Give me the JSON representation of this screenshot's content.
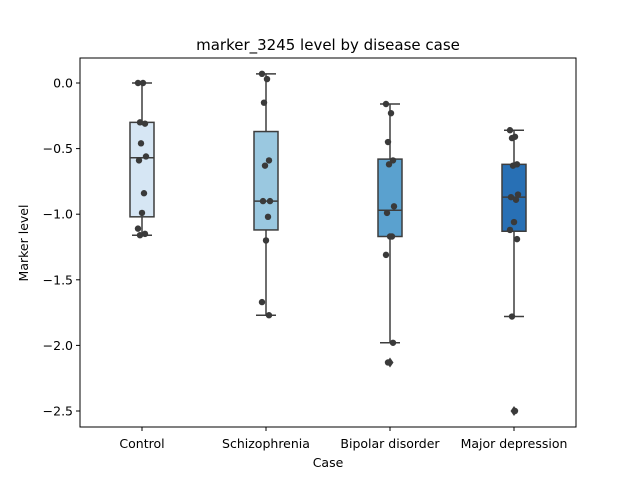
{
  "chart_data": {
    "type": "box",
    "title": "marker_3245 level by disease case",
    "xlabel": "Case",
    "ylabel": "Marker level",
    "ylim": [
      -2.63,
      0.18
    ],
    "yticks": [
      0.0,
      -0.5,
      -1.0,
      -1.5,
      -2.0,
      -2.5
    ],
    "ytick_labels": [
      "0.0",
      "−0.5",
      "−1.0",
      "−1.5",
      "−2.0",
      "−2.5"
    ],
    "grid": false,
    "categories": [
      "Control",
      "Schizophrenia",
      "Bipolar disorder",
      "Major depression"
    ],
    "colors": [
      "#d6e6f4",
      "#9ac8e0",
      "#5aa1cf",
      "#2870b5"
    ],
    "boxes": [
      {
        "whislo": -1.16,
        "q1": -1.02,
        "med": -0.57,
        "q3": -0.3,
        "whishi": 0.0,
        "fliers": []
      },
      {
        "whislo": -1.77,
        "q1": -1.12,
        "med": -0.9,
        "q3": -0.37,
        "whishi": 0.07,
        "fliers": []
      },
      {
        "whislo": -1.98,
        "q1": -1.17,
        "med": -0.97,
        "q3": -0.58,
        "whishi": -0.16,
        "fliers": [
          -2.13
        ]
      },
      {
        "whislo": -1.78,
        "q1": -1.13,
        "med": -0.87,
        "q3": -0.62,
        "whishi": -0.36,
        "fliers": [
          -2.5
        ]
      }
    ],
    "points": [
      [
        0.0,
        0.0,
        -0.3,
        -0.31,
        -0.46,
        -0.56,
        -0.59,
        -0.84,
        -0.99,
        -1.11,
        -1.15,
        -1.16
      ],
      [
        0.07,
        0.03,
        -0.15,
        -0.59,
        -0.63,
        -0.9,
        -0.9,
        -1.02,
        -1.2,
        -1.67,
        -1.77
      ],
      [
        -0.16,
        -0.23,
        -0.45,
        -0.59,
        -0.62,
        -0.94,
        -0.99,
        -1.17,
        -1.17,
        -1.31,
        -1.98,
        -2.13
      ],
      [
        -0.36,
        -0.41,
        -0.42,
        -0.62,
        -0.63,
        -0.85,
        -0.87,
        -0.89,
        -1.06,
        -1.12,
        -1.19,
        -1.78,
        -2.5
      ]
    ]
  }
}
